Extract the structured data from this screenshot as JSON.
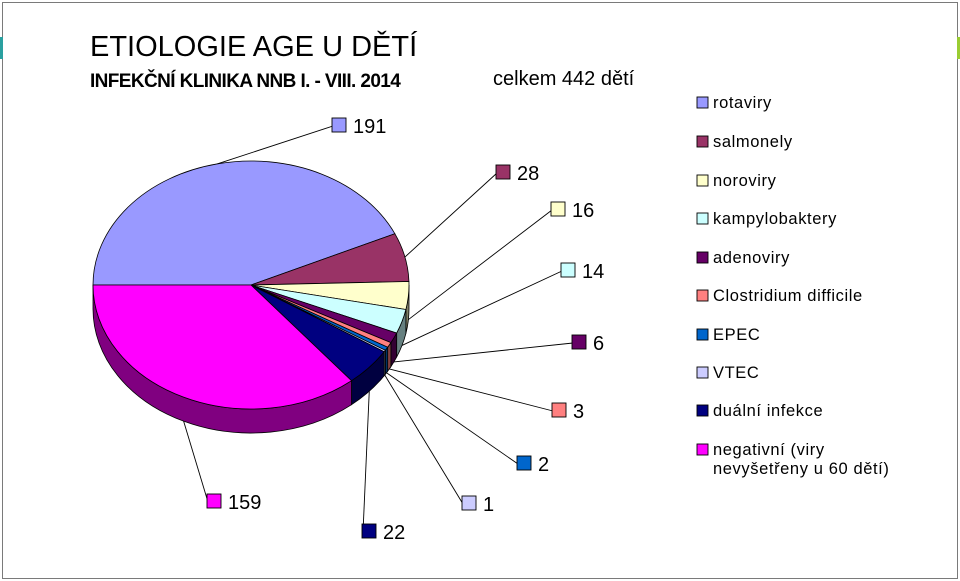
{
  "page": {
    "title": "ETIOLOGIE AGE U DĚTÍ",
    "subtitle": "INFEKČNÍ KLINIKA NNB I. - VIII. 2014",
    "total_label": "celkem 442 dětí"
  },
  "chart_data": {
    "type": "pie",
    "title": "ETIOLOGIE AGE U DĚTÍ",
    "subtitle": "INFEKČNÍ KLINIKA NNB I. - VIII. 2014",
    "style": "3d exploded-free pie with leader-line data labels",
    "legend_position": "right",
    "slices": [
      {
        "name": "rotaviry",
        "value": 191,
        "color": "#9999ff"
      },
      {
        "name": "salmonely",
        "value": 28,
        "color": "#993366"
      },
      {
        "name": "noroviry",
        "value": 16,
        "color": "#ffffcc"
      },
      {
        "name": "kampylobaktery",
        "value": 14,
        "color": "#ccffff"
      },
      {
        "name": "adenoviry",
        "value": 6,
        "color": "#660066"
      },
      {
        "name": "Clostridium difficile",
        "value": 3,
        "color": "#ff8080"
      },
      {
        "name": "EPEC",
        "value": 2,
        "color": "#0066cc"
      },
      {
        "name": "VTEC",
        "value": 1,
        "color": "#ccccff"
      },
      {
        "name": "duální infekce",
        "value": 22,
        "color": "#000080"
      },
      {
        "name": "negativní (viry nevyšetřeny u 60 dětí)",
        "value": 159,
        "color": "#ff00ff"
      }
    ]
  }
}
